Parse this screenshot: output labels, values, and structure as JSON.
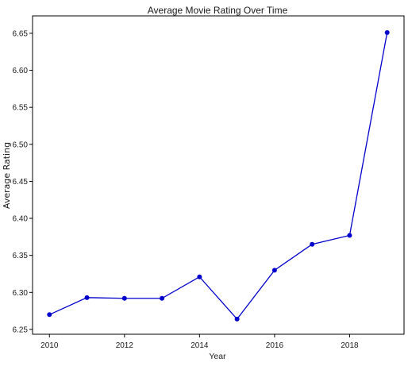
{
  "chart_data": {
    "type": "line",
    "title": "Average Movie Rating Over Time",
    "xlabel": "Year",
    "ylabel": "Average Rating",
    "xlim": [
      2009.55,
      2019.45
    ],
    "ylim": [
      6.2435,
      6.6735
    ],
    "x_ticks": [
      2010,
      2012,
      2014,
      2016,
      2018
    ],
    "y_ticks": [
      6.25,
      6.3,
      6.35,
      6.4,
      6.45,
      6.5,
      6.55,
      6.6,
      6.65
    ],
    "grid": false,
    "series": [
      {
        "x": [
          2010,
          2011,
          2012,
          2013,
          2014,
          2015,
          2016,
          2017,
          2018,
          2019
        ],
        "y": [
          6.27,
          6.293,
          6.292,
          6.292,
          6.321,
          6.264,
          6.33,
          6.365,
          6.377,
          6.651
        ],
        "color": "#0000cc",
        "marker": "circle"
      }
    ]
  }
}
